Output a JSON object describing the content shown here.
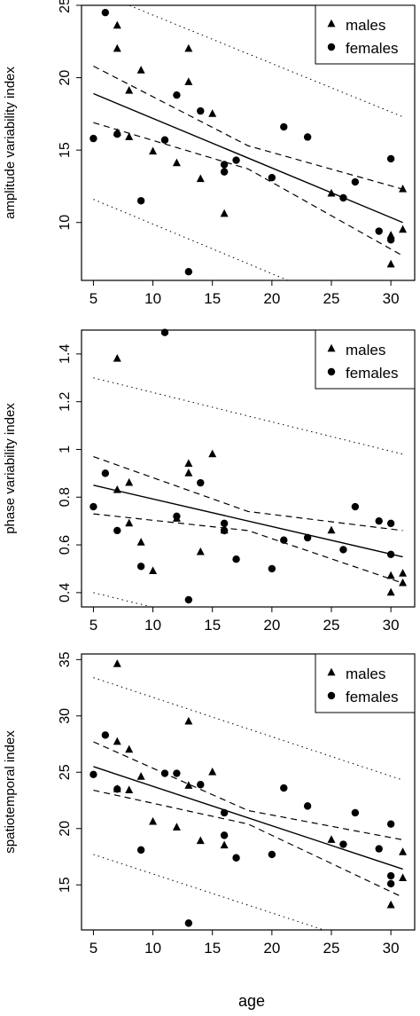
{
  "figure": {
    "shared_xlabel": "age"
  },
  "chart_data": [
    {
      "type": "scatter",
      "ylabel": "amplitude variability index",
      "xlim": [
        4,
        32
      ],
      "ylim": [
        6,
        25
      ],
      "xticks": [
        5,
        10,
        15,
        20,
        25,
        30
      ],
      "yticks": [
        10,
        15,
        20,
        25
      ],
      "legend": {
        "placement": "top-right",
        "entries": [
          {
            "label": "males",
            "marker": "triangle"
          },
          {
            "label": "females",
            "marker": "circle"
          }
        ]
      },
      "series": [
        {
          "name": "males",
          "marker": "triangle",
          "points": [
            [
              7,
              23.6
            ],
            [
              7,
              22.0
            ],
            [
              7,
              16.2
            ],
            [
              8,
              19.1
            ],
            [
              8,
              15.9
            ],
            [
              9,
              20.5
            ],
            [
              10,
              14.9
            ],
            [
              12,
              14.1
            ],
            [
              13,
              22.0
            ],
            [
              13,
              19.7
            ],
            [
              14,
              13.0
            ],
            [
              15,
              17.5
            ],
            [
              16,
              10.6
            ],
            [
              25,
              12.0
            ],
            [
              30,
              9.1
            ],
            [
              30,
              7.1
            ],
            [
              31,
              12.3
            ],
            [
              31,
              9.5
            ]
          ]
        },
        {
          "name": "females",
          "marker": "circle",
          "points": [
            [
              5,
              15.8
            ],
            [
              6,
              24.5
            ],
            [
              7,
              16.1
            ],
            [
              9,
              11.5
            ],
            [
              11,
              15.7
            ],
            [
              12,
              18.8
            ],
            [
              13,
              6.6
            ],
            [
              14,
              17.7
            ],
            [
              16,
              14.0
            ],
            [
              16,
              13.5
            ],
            [
              17,
              14.3
            ],
            [
              20,
              13.1
            ],
            [
              21,
              16.6
            ],
            [
              23,
              15.9
            ],
            [
              26,
              11.7
            ],
            [
              27,
              12.8
            ],
            [
              29,
              9.4
            ],
            [
              30,
              14.4
            ],
            [
              30,
              8.8
            ]
          ]
        }
      ],
      "fit": {
        "x": [
          5,
          31
        ],
        "y": [
          18.9,
          10.0
        ]
      },
      "ci": {
        "x": [
          5,
          18,
          31
        ],
        "upper": [
          20.8,
          15.3,
          12.3
        ],
        "lower": [
          16.9,
          13.7,
          7.7
        ]
      },
      "pi": {
        "x": [
          5,
          31
        ],
        "upper": [
          26.0,
          17.3
        ],
        "lower": [
          11.6,
          2.7
        ]
      }
    },
    {
      "type": "scatter",
      "ylabel": "phase variability index",
      "xlim": [
        4,
        32
      ],
      "ylim": [
        0.34,
        1.5
      ],
      "xticks": [
        5,
        10,
        15,
        20,
        25,
        30
      ],
      "yticks": [
        0.4,
        0.6,
        0.8,
        1.0,
        1.2,
        1.4
      ],
      "legend": {
        "placement": "top-right",
        "entries": [
          {
            "label": "males",
            "marker": "triangle"
          },
          {
            "label": "females",
            "marker": "circle"
          }
        ]
      },
      "series": [
        {
          "name": "males",
          "marker": "triangle",
          "points": [
            [
              7,
              1.38
            ],
            [
              7,
              0.83
            ],
            [
              8,
              0.86
            ],
            [
              8,
              0.69
            ],
            [
              9,
              0.61
            ],
            [
              10,
              0.49
            ],
            [
              12,
              0.71
            ],
            [
              13,
              0.94
            ],
            [
              13,
              0.9
            ],
            [
              14,
              0.57
            ],
            [
              15,
              0.98
            ],
            [
              16,
              0.66
            ],
            [
              25,
              0.66
            ],
            [
              30,
              0.47
            ],
            [
              30,
              0.4
            ],
            [
              31,
              0.48
            ],
            [
              31,
              0.44
            ]
          ]
        },
        {
          "name": "females",
          "marker": "circle",
          "points": [
            [
              5,
              0.76
            ],
            [
              6,
              0.9
            ],
            [
              7,
              0.66
            ],
            [
              9,
              0.51
            ],
            [
              11,
              1.49
            ],
            [
              12,
              0.72
            ],
            [
              13,
              0.37
            ],
            [
              14,
              0.86
            ],
            [
              16,
              0.69
            ],
            [
              16,
              0.66
            ],
            [
              17,
              0.54
            ],
            [
              20,
              0.5
            ],
            [
              21,
              0.62
            ],
            [
              23,
              0.63
            ],
            [
              26,
              0.58
            ],
            [
              27,
              0.76
            ],
            [
              29,
              0.7
            ],
            [
              30,
              0.69
            ],
            [
              30,
              0.56
            ]
          ]
        }
      ],
      "fit": {
        "x": [
          5,
          31
        ],
        "y": [
          0.85,
          0.55
        ]
      },
      "ci": {
        "x": [
          5,
          18,
          31
        ],
        "upper": [
          0.97,
          0.74,
          0.66
        ],
        "lower": [
          0.73,
          0.66,
          0.44
        ]
      },
      "pi": {
        "x": [
          5,
          31
        ],
        "upper": [
          1.3,
          0.98
        ],
        "lower": [
          0.4,
          0.08
        ]
      }
    },
    {
      "type": "scatter",
      "ylabel": "spatiotemporal index",
      "xlim": [
        4,
        32
      ],
      "ylim": [
        11,
        35.5
      ],
      "xticks": [
        5,
        10,
        15,
        20,
        25,
        30
      ],
      "yticks": [
        15,
        20,
        25,
        30,
        35
      ],
      "legend": {
        "placement": "top-right",
        "entries": [
          {
            "label": "males",
            "marker": "triangle"
          },
          {
            "label": "females",
            "marker": "circle"
          }
        ]
      },
      "series": [
        {
          "name": "males",
          "marker": "triangle",
          "points": [
            [
              7,
              34.6
            ],
            [
              7,
              27.7
            ],
            [
              7,
              23.5
            ],
            [
              8,
              27.0
            ],
            [
              8,
              23.4
            ],
            [
              9,
              24.6
            ],
            [
              10,
              20.6
            ],
            [
              12,
              20.1
            ],
            [
              13,
              29.5
            ],
            [
              13,
              23.8
            ],
            [
              14,
              18.9
            ],
            [
              15,
              25.0
            ],
            [
              16,
              18.5
            ],
            [
              25,
              19.0
            ],
            [
              30,
              13.2
            ],
            [
              31,
              17.9
            ],
            [
              31,
              15.6
            ]
          ]
        },
        {
          "name": "females",
          "marker": "circle",
          "points": [
            [
              5,
              24.8
            ],
            [
              6,
              28.3
            ],
            [
              7,
              23.5
            ],
            [
              9,
              18.1
            ],
            [
              11,
              24.9
            ],
            [
              12,
              24.9
            ],
            [
              13,
              11.6
            ],
            [
              14,
              23.9
            ],
            [
              16,
              21.4
            ],
            [
              16,
              19.4
            ],
            [
              17,
              17.4
            ],
            [
              20,
              17.7
            ],
            [
              21,
              23.6
            ],
            [
              23,
              22.0
            ],
            [
              26,
              18.6
            ],
            [
              27,
              21.4
            ],
            [
              29,
              18.2
            ],
            [
              30,
              20.4
            ],
            [
              30,
              15.8
            ],
            [
              30,
              15.1
            ]
          ]
        }
      ],
      "fit": {
        "x": [
          5,
          31
        ],
        "y": [
          25.5,
          16.4
        ]
      },
      "ci": {
        "x": [
          5,
          18,
          31
        ],
        "upper": [
          27.7,
          21.6,
          19.0
        ],
        "lower": [
          23.4,
          20.4,
          13.9
        ]
      },
      "pi": {
        "x": [
          5,
          31
        ],
        "upper": [
          33.4,
          24.3
        ],
        "lower": [
          17.7,
          8.7
        ]
      }
    }
  ]
}
